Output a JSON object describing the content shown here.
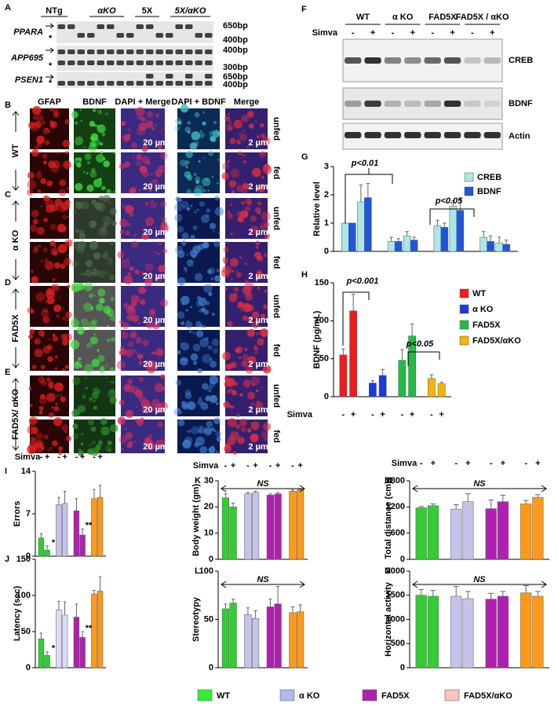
{
  "panels": {
    "A": {
      "label": "A",
      "lanes": [
        "NTg",
        "αKO",
        "5X",
        "5X/αKO"
      ],
      "genes": [
        "PPARA",
        "APP695",
        "PSEN1"
      ],
      "sizes": [
        [
          "650bp",
          "400bp"
        ],
        [
          "400bp",
          "300bp"
        ],
        [
          "650bp",
          "400bp"
        ]
      ],
      "marker": "*"
    },
    "BE": {
      "labels": [
        "B",
        "C",
        "D",
        "E"
      ],
      "columns": [
        "GFAP",
        "BDNF",
        "DAPI + Merge",
        "DAPI + BDNF",
        "Merge"
      ],
      "rows": [
        "WT",
        "α KO",
        "FAD5X",
        "FAD5X/ αKO"
      ],
      "conditions": [
        "unfed",
        "fed"
      ],
      "scale_bars": [
        "20 µm",
        "2 µm"
      ]
    },
    "F": {
      "label": "F",
      "lanes": [
        "WT",
        "α KO",
        "FAD5X",
        "FAD5X / αKO"
      ],
      "treatment": "Simva",
      "signs": [
        "-",
        "+"
      ],
      "blots": [
        "CREB",
        "BDNF",
        "Actin"
      ]
    }
  },
  "chart_data": [
    {
      "type": "bar",
      "label": "G",
      "y_label": "Relative level",
      "categories": [
        null,
        null,
        null,
        null,
        null,
        null,
        null,
        null
      ],
      "series": [
        {
          "name": "CREB",
          "color": "#aee6e6",
          "values": [
            1,
            1.75,
            0.35,
            0.55,
            0.9,
            1.6,
            0.5,
            0.3
          ],
          "errors": [
            0,
            0.6,
            0.15,
            0.15,
            0.2,
            0.2,
            0.2,
            0.2
          ]
        },
        {
          "name": "BDNF",
          "color": "#2255dd",
          "values": [
            1,
            1.9,
            0.35,
            0.4,
            0.85,
            1.45,
            0.35,
            0.25
          ],
          "errors": [
            0,
            0.5,
            0.1,
            0.1,
            0.15,
            0.4,
            0.2,
            0.15
          ]
        }
      ],
      "ylim": [
        0,
        3
      ],
      "yticks": [
        0,
        1,
        2,
        3
      ],
      "annotations": [
        "p<0.01",
        "p<0.05"
      ]
    },
    {
      "type": "bar",
      "label": "H",
      "y_label": "BDNF (pg/mL)",
      "x_label": "Simva",
      "categories": [
        "-",
        "+",
        "-",
        "+",
        "-",
        "+",
        "-",
        "+"
      ],
      "series": [
        {
          "name": "WT",
          "color": "#ee1c1c",
          "values": [
            55,
            113,
            null,
            null,
            null,
            null,
            null,
            null
          ],
          "errors": [
            8,
            22,
            null,
            null,
            null,
            null,
            null,
            null
          ]
        },
        {
          "name": "α KO",
          "color": "#1c3ad8",
          "values": [
            null,
            null,
            18,
            28,
            null,
            null,
            null,
            null
          ],
          "errors": [
            null,
            null,
            3,
            8,
            null,
            null,
            null,
            null
          ]
        },
        {
          "name": "FAD5X",
          "color": "#22bb44",
          "values": [
            null,
            null,
            null,
            null,
            48,
            80,
            null,
            null
          ],
          "errors": [
            null,
            null,
            null,
            null,
            14,
            16,
            null,
            null
          ]
        },
        {
          "name": "FAD5X/αKO",
          "color": "#f5b400",
          "values": [
            null,
            null,
            null,
            null,
            null,
            null,
            24,
            17
          ],
          "errors": [
            null,
            null,
            null,
            null,
            null,
            null,
            5,
            2
          ]
        }
      ],
      "ylim": [
        0,
        150
      ],
      "yticks": [
        0,
        50,
        100,
        150
      ],
      "annotations": [
        "p<0.001",
        "p<0.05"
      ]
    },
    {
      "type": "bar",
      "label": "I",
      "y_label": "Errors",
      "x_label": "Simva",
      "categories": [
        "-",
        "+",
        "-",
        "+",
        "-",
        "+",
        "-",
        "+"
      ],
      "values": [
        3,
        1,
        8.5,
        8.7,
        7.5,
        3.5,
        9.5,
        9.7
      ],
      "errors": [
        0.7,
        0.7,
        1.2,
        2,
        2,
        1,
        1.5,
        2
      ],
      "colors": [
        "#33cc33",
        "#33cc33",
        "#c4c4ea",
        "#c4c4ea",
        "#b020b0",
        "#b020b0",
        "#ff9a1a",
        "#ff9a1a"
      ],
      "ylim": [
        0,
        14
      ],
      "yticks": [
        0,
        7,
        14
      ],
      "annotations": [
        "*",
        "**"
      ]
    },
    {
      "type": "bar",
      "label": "J",
      "y_label": "Latency (sec)",
      "categories": [
        null,
        null,
        null,
        null,
        null,
        null,
        null,
        null
      ],
      "values": [
        40,
        17,
        80,
        73,
        70,
        42,
        102,
        106
      ],
      "errors": [
        8,
        5,
        12,
        18,
        18,
        8,
        5,
        20
      ],
      "colors": [
        "#33cc33",
        "#33cc33",
        "#dcdcf4",
        "#dcdcf4",
        "#b020b0",
        "#b020b0",
        "#ff9a1a",
        "#ff9a1a"
      ],
      "ylim": [
        0,
        150
      ],
      "yticks": [
        0,
        50,
        100,
        150
      ],
      "annotations": [
        "*",
        "**"
      ]
    },
    {
      "type": "bar",
      "label": "K",
      "y_label": "Body weight (gm)",
      "x_label": "Simva",
      "categories": [
        "-",
        "+",
        "-",
        "+",
        "-",
        "+",
        "-",
        "+"
      ],
      "values": [
        23.5,
        20,
        25,
        25.5,
        24.5,
        25,
        26,
        26.5
      ],
      "errors": [
        1.5,
        1.5,
        0.5,
        0.5,
        0.5,
        0.5,
        0.5,
        0.3
      ],
      "colors": [
        "#33cc33",
        "#33cc33",
        "#c4c4ea",
        "#c4c4ea",
        "#b020b0",
        "#b020b0",
        "#ff9a1a",
        "#ff9a1a"
      ],
      "ylim": [
        0,
        30
      ],
      "yticks": [
        0,
        10,
        20,
        30
      ],
      "annotations": [
        "NS"
      ]
    },
    {
      "type": "bar",
      "label": "L",
      "y_label": "Stereotypy",
      "categories": [
        null,
        null,
        null,
        null,
        null,
        null,
        null,
        null
      ],
      "values": [
        61,
        67,
        55,
        51,
        63,
        66,
        57,
        58
      ],
      "errors": [
        5,
        4,
        7,
        8,
        8,
        18,
        6,
        7
      ],
      "colors": [
        "#33cc33",
        "#33cc33",
        "#c4c4ea",
        "#c4c4ea",
        "#b020b0",
        "#b020b0",
        "#ff9a1a",
        "#ff9a1a"
      ],
      "ylim": [
        0,
        100
      ],
      "yticks": [
        0,
        50,
        100
      ],
      "annotations": [
        "NS"
      ]
    },
    {
      "type": "bar",
      "label": "M",
      "y_label": "Total distance (cm)",
      "x_label": "Simva",
      "categories": [
        "-",
        "+",
        "-",
        "+",
        "-",
        "+",
        "-",
        "+"
      ],
      "values": [
        1180,
        1230,
        1150,
        1320,
        1160,
        1320,
        1270,
        1420
      ],
      "errors": [
        30,
        40,
        100,
        180,
        200,
        150,
        80,
        60
      ],
      "colors": [
        "#33cc33",
        "#33cc33",
        "#c4c4ea",
        "#c4c4ea",
        "#b020b0",
        "#b020b0",
        "#ff9a1a",
        "#ff9a1a"
      ],
      "ylim": [
        0,
        1800
      ],
      "yticks": [
        0,
        600,
        1200,
        1800
      ],
      "annotations": [
        "NS"
      ]
    },
    {
      "type": "bar",
      "label": "N",
      "y_label": "Horizontal activity",
      "categories": [
        null,
        null,
        null,
        null,
        null,
        null,
        null,
        null
      ],
      "values": [
        1500,
        1480,
        1480,
        1430,
        1420,
        1480,
        1550,
        1480
      ],
      "errors": [
        120,
        120,
        200,
        150,
        120,
        100,
        150,
        100
      ],
      "colors": [
        "#33cc33",
        "#33cc33",
        "#c4c4ea",
        "#c4c4ea",
        "#b020b0",
        "#b020b0",
        "#ff9a1a",
        "#ff9a1a"
      ],
      "ylim": [
        0,
        2000
      ],
      "yticks": [
        0,
        500,
        1000,
        1500,
        2000
      ],
      "annotations": [
        "NS"
      ]
    }
  ],
  "legend": [
    {
      "name": "WT",
      "color": "#33ee33"
    },
    {
      "name": "α KO",
      "color": "#b0b8ee"
    },
    {
      "name": "FAD5X",
      "color": "#b020b0"
    },
    {
      "name": "FAD5X/αKO",
      "color": "#f8c4bc"
    }
  ]
}
